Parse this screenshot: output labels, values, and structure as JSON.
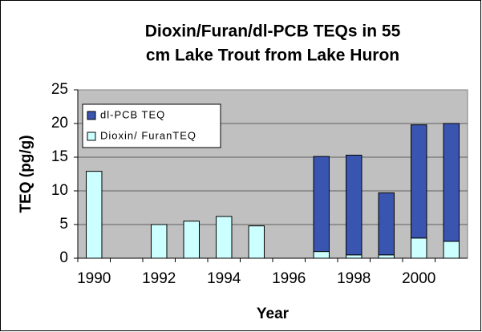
{
  "chart_data": {
    "type": "stacked-bar",
    "title": [
      "Dioxin/Furan/dl-PCB TEQs in 55",
      "cm Lake Trout from Lake Huron"
    ],
    "x_label": "Year",
    "y_label": "TEQ (pg/g)",
    "categories": [
      "1990",
      null,
      "1992",
      null,
      "1994",
      null,
      "1996",
      null,
      "1998",
      null,
      "2000",
      null
    ],
    "series": [
      {
        "name": "Dioxin/ FuranTEQ",
        "color": "#ccffff",
        "values": [
          12.9,
          null,
          5.0,
          5.5,
          6.2,
          4.8,
          null,
          1.0,
          0.5,
          0.5,
          3.0,
          2.5
        ]
      },
      {
        "name": "dl-PCB TEQ",
        "color": "#3a55b0",
        "values": [
          null,
          null,
          null,
          null,
          null,
          null,
          null,
          14.1,
          14.8,
          9.2,
          16.8,
          17.5
        ]
      }
    ],
    "ylim": [
      0,
      25
    ],
    "yticks": [
      0,
      5,
      10,
      15,
      20,
      25
    ],
    "grid": true,
    "legend": "top-left"
  }
}
